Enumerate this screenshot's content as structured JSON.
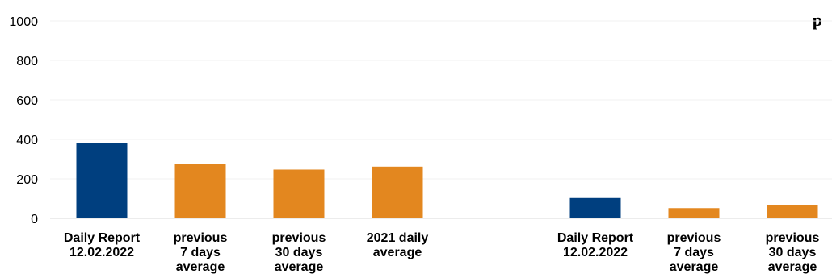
{
  "chart_data": {
    "type": "bar",
    "title_fragment": "p",
    "ylim": [
      0,
      1000
    ],
    "yticks": [
      0,
      200,
      400,
      600,
      800,
      1000
    ],
    "grid": true,
    "colors": {
      "current": "#003f7f",
      "average": "#e3871f"
    },
    "groups": [
      {
        "bars": [
          {
            "label_lines": [
              "Daily Report",
              "12.02.2022"
            ],
            "value": 380,
            "kind": "current"
          },
          {
            "label_lines": [
              "previous",
              "7 days",
              "average"
            ],
            "value": 275,
            "kind": "average"
          },
          {
            "label_lines": [
              "previous",
              "30 days",
              "average"
            ],
            "value": 247,
            "kind": "average"
          },
          {
            "label_lines": [
              "2021 daily",
              "average"
            ],
            "value": 262,
            "kind": "average"
          }
        ]
      },
      {
        "bars": [
          {
            "label_lines": [
              "Daily Report",
              "12.02.2022"
            ],
            "value": 103,
            "kind": "current"
          },
          {
            "label_lines": [
              "previous",
              "7 days",
              "average"
            ],
            "value": 52,
            "kind": "average"
          },
          {
            "label_lines": [
              "previous",
              "30 days",
              "average"
            ],
            "value": 66,
            "kind": "average"
          }
        ]
      }
    ]
  }
}
